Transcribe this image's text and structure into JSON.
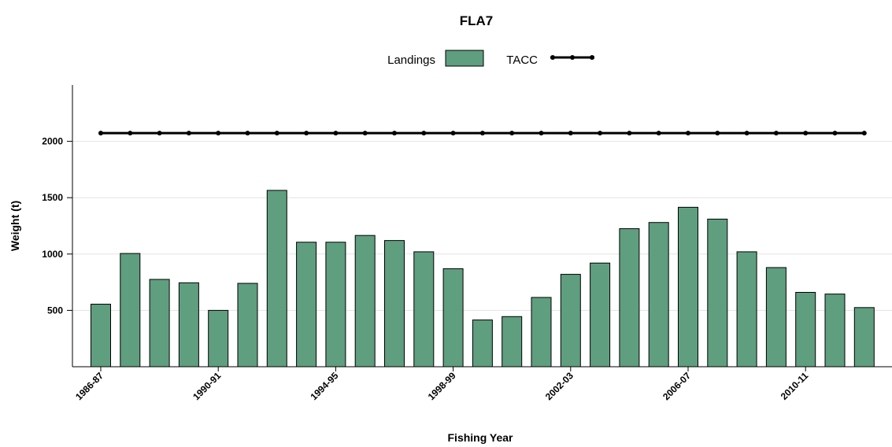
{
  "chart_data": {
    "type": "bar",
    "title": "FLA7",
    "xlabel": "Fishing Year",
    "ylabel": "Weight (t)",
    "ylim": [
      0,
      2500
    ],
    "yticks": [
      500,
      1000,
      1500,
      2000
    ],
    "grid": true,
    "legend_position": "top",
    "categories": [
      "1986-87",
      "1987-88",
      "1988-89",
      "1989-90",
      "1990-91",
      "1991-92",
      "1992-93",
      "1993-94",
      "1994-95",
      "1995-96",
      "1996-97",
      "1997-98",
      "1998-99",
      "1999-00",
      "2000-01",
      "2001-02",
      "2002-03",
      "2003-04",
      "2004-05",
      "2005-06",
      "2006-07",
      "2007-08",
      "2008-09",
      "2009-10",
      "2010-11",
      "2011-12",
      "2012-13"
    ],
    "x_tick_labels_shown": [
      "1986-87",
      "1990-91",
      "1994-95",
      "1998-99",
      "2002-03",
      "2006-07",
      "2010-11"
    ],
    "series": [
      {
        "name": "Landings",
        "kind": "bar",
        "color": "#5f9e7f",
        "values": [
          555,
          1005,
          775,
          745,
          500,
          740,
          1565,
          1105,
          1105,
          1165,
          1120,
          1020,
          870,
          415,
          445,
          615,
          820,
          920,
          1225,
          1280,
          1415,
          1310,
          1020,
          880,
          660,
          645,
          525
        ]
      },
      {
        "name": "TACC",
        "kind": "line",
        "color": "#000000",
        "values": [
          2073,
          2073,
          2073,
          2073,
          2073,
          2073,
          2073,
          2073,
          2073,
          2073,
          2073,
          2073,
          2073,
          2073,
          2073,
          2073,
          2073,
          2073,
          2073,
          2073,
          2073,
          2073,
          2073,
          2073,
          2073,
          2073,
          2073
        ]
      }
    ]
  }
}
